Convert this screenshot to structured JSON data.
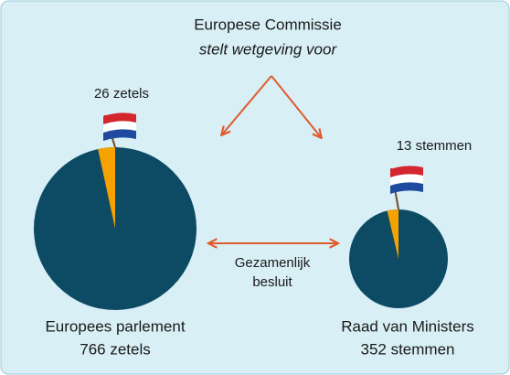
{
  "header": {
    "title": "Europese Commissie",
    "subtitle": "stelt wetgeving voor"
  },
  "center_label": [
    "Gezamenlijk",
    "besluit"
  ],
  "chart_data": [
    {
      "type": "pie",
      "title": "Europees parlement",
      "total": 766,
      "total_label": "766 zetels",
      "values": [
        26
      ],
      "value_labels": [
        "26 zetels"
      ],
      "color": "#0d4a63",
      "slice_color": "#f5a200"
    },
    {
      "type": "pie",
      "title": "Raad van Ministers",
      "total": 352,
      "total_label": "352 stemmen",
      "values": [
        13
      ],
      "value_labels": [
        "13 stemmen"
      ],
      "color": "#0d4a63",
      "slice_color": "#f5a200"
    }
  ]
}
